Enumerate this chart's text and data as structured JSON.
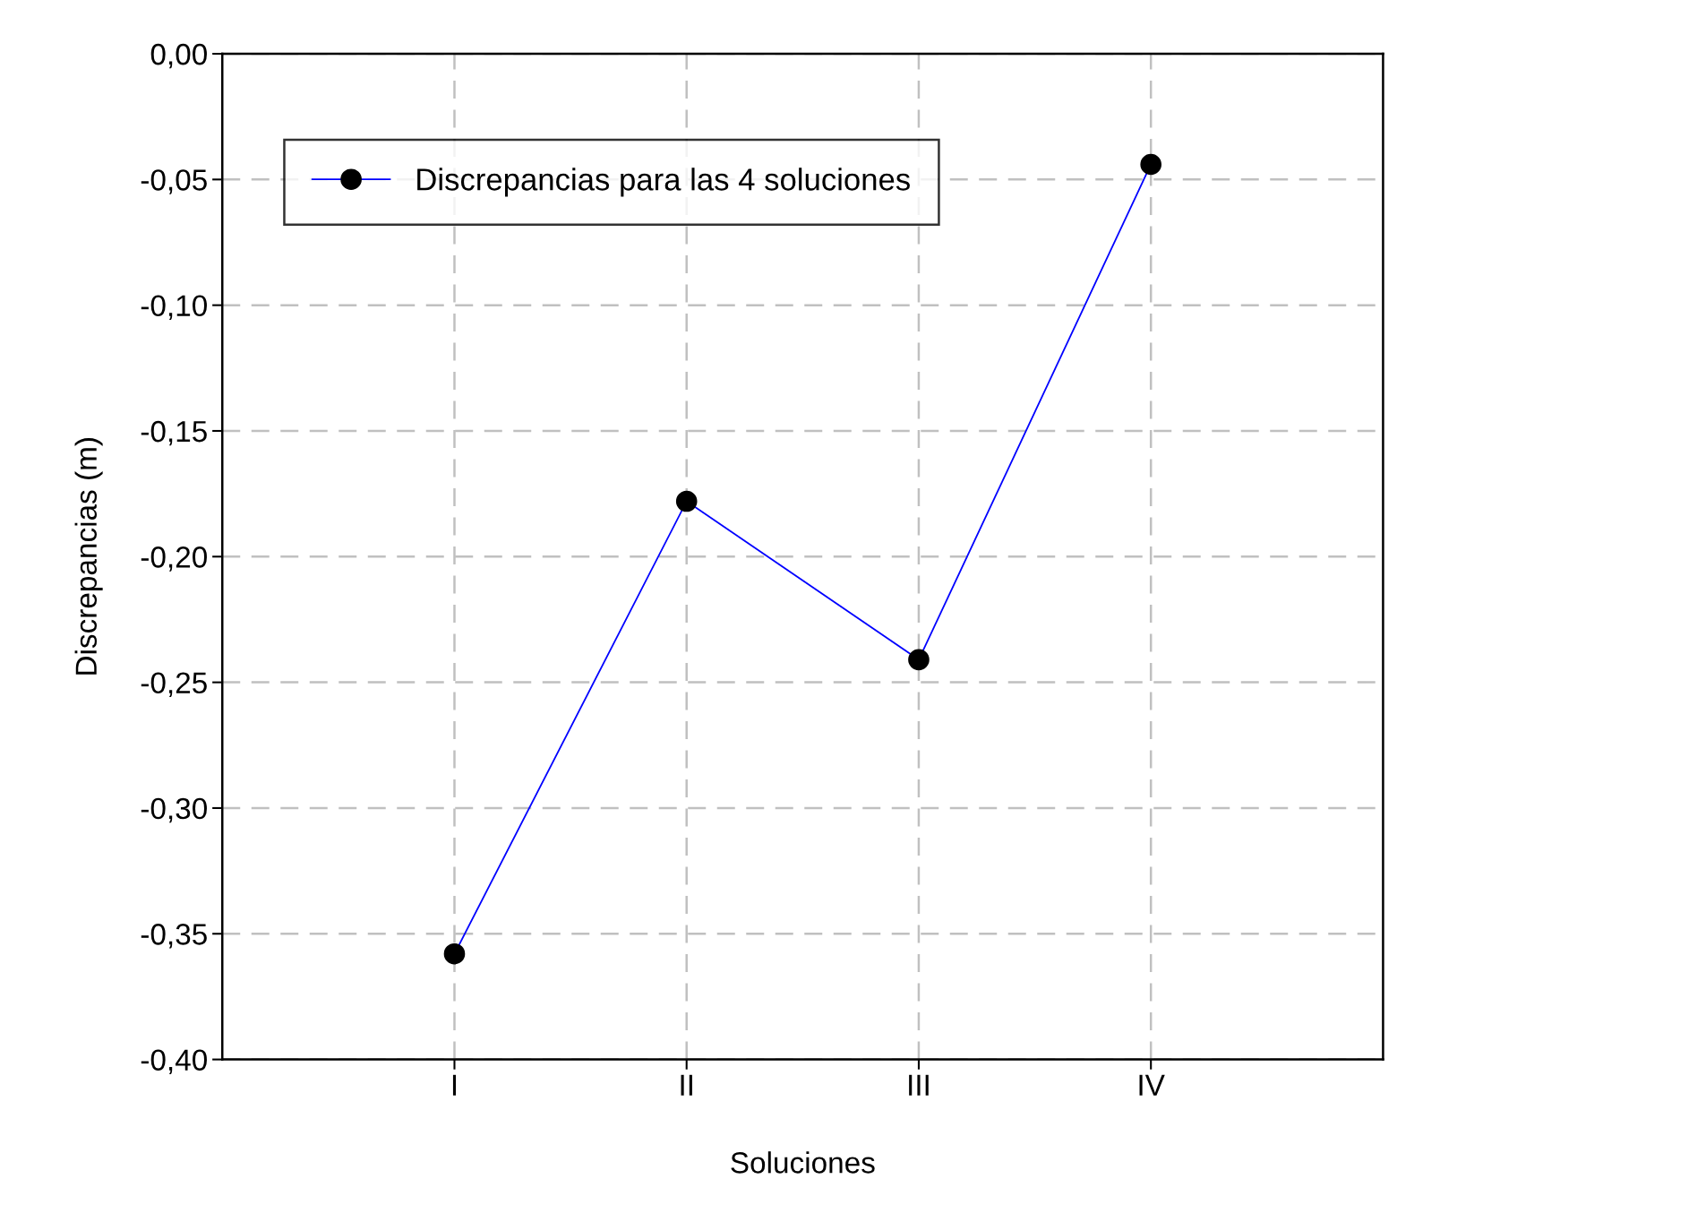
{
  "chart_data": {
    "type": "line",
    "xlabel": "Soluciones",
    "ylabel": "Discrepancias (m)",
    "categories": [
      "I",
      "II",
      "III",
      "IV"
    ],
    "series": [
      {
        "name": "Discrepancias para las 4 soluciones",
        "color": "#0000ff",
        "values": [
          -0.358,
          -0.178,
          -0.241,
          -0.044
        ]
      }
    ],
    "ylim": [
      -0.4,
      0.0
    ],
    "yticks": [
      {
        "value": -0.4,
        "label": "-0,40"
      },
      {
        "value": -0.35,
        "label": "-0,35"
      },
      {
        "value": -0.3,
        "label": "-0,30"
      },
      {
        "value": -0.25,
        "label": "-0,25"
      },
      {
        "value": -0.2,
        "label": "-0,20"
      },
      {
        "value": -0.15,
        "label": "-0,15"
      },
      {
        "value": -0.1,
        "label": "-0,10"
      },
      {
        "value": -0.05,
        "label": "-0,05"
      },
      {
        "value": 0.0,
        "label": "0,00"
      }
    ],
    "grid": true,
    "legend": "top left",
    "marker": "circle",
    "line_style": "solid"
  }
}
